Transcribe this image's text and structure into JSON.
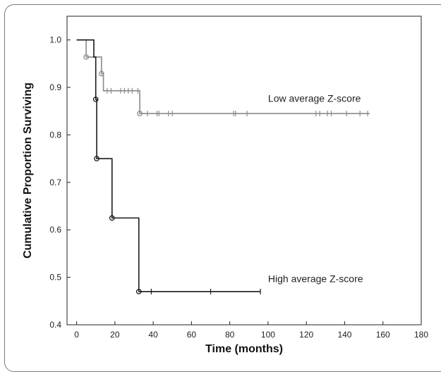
{
  "chart_data": {
    "type": "line",
    "subtype": "kaplan-meier step",
    "xlabel": "Time (months)",
    "ylabel": "Cumulative Proportion Surviving",
    "xlim": [
      -5,
      180
    ],
    "ylim": [
      0.4,
      1.05
    ],
    "xticks": [
      0,
      20,
      40,
      60,
      80,
      100,
      120,
      140,
      160,
      180
    ],
    "yticks": [
      0.4,
      0.5,
      0.6,
      0.7,
      0.8,
      0.9,
      1.0
    ],
    "grid": false,
    "legend": "none (series labelled on plot)",
    "series": [
      {
        "name": "Low average Z-score",
        "color": "#8a8a8a",
        "steps": [
          [
            0,
            1.0
          ],
          [
            5,
            0.964
          ],
          [
            13,
            0.929
          ],
          [
            14,
            0.893
          ],
          [
            33,
            0.845
          ],
          [
            153,
            0.845
          ]
        ],
        "event_markers": [
          [
            5,
            0.964
          ],
          [
            13,
            0.929
          ],
          [
            33,
            0.845
          ]
        ],
        "censored": [
          [
            16,
            0.893
          ],
          [
            18,
            0.893
          ],
          [
            23,
            0.893
          ],
          [
            25,
            0.893
          ],
          [
            27,
            0.893
          ],
          [
            29,
            0.893
          ],
          [
            32,
            0.893
          ],
          [
            37,
            0.845
          ],
          [
            42,
            0.845
          ],
          [
            43,
            0.845
          ],
          [
            48,
            0.845
          ],
          [
            50,
            0.845
          ],
          [
            82,
            0.845
          ],
          [
            83,
            0.845
          ],
          [
            89,
            0.845
          ],
          [
            125,
            0.845
          ],
          [
            127,
            0.845
          ],
          [
            131,
            0.845
          ],
          [
            133,
            0.845
          ],
          [
            141,
            0.845
          ],
          [
            148,
            0.845
          ],
          [
            152,
            0.845
          ]
        ]
      },
      {
        "name": "High average Z-score",
        "color": "#1a1a1a",
        "steps": [
          [
            0,
            1.0
          ],
          [
            9,
            0.964
          ],
          [
            10,
            0.875
          ],
          [
            10.5,
            0.75
          ],
          [
            18.5,
            0.625
          ],
          [
            32.5,
            0.47
          ],
          [
            96,
            0.47
          ]
        ],
        "event_markers": [
          [
            10,
            0.875
          ],
          [
            10.5,
            0.75
          ],
          [
            18.5,
            0.625
          ],
          [
            32.5,
            0.47
          ]
        ],
        "censored": [
          [
            39,
            0.47
          ],
          [
            70,
            0.47
          ],
          [
            96,
            0.47
          ]
        ]
      }
    ]
  }
}
